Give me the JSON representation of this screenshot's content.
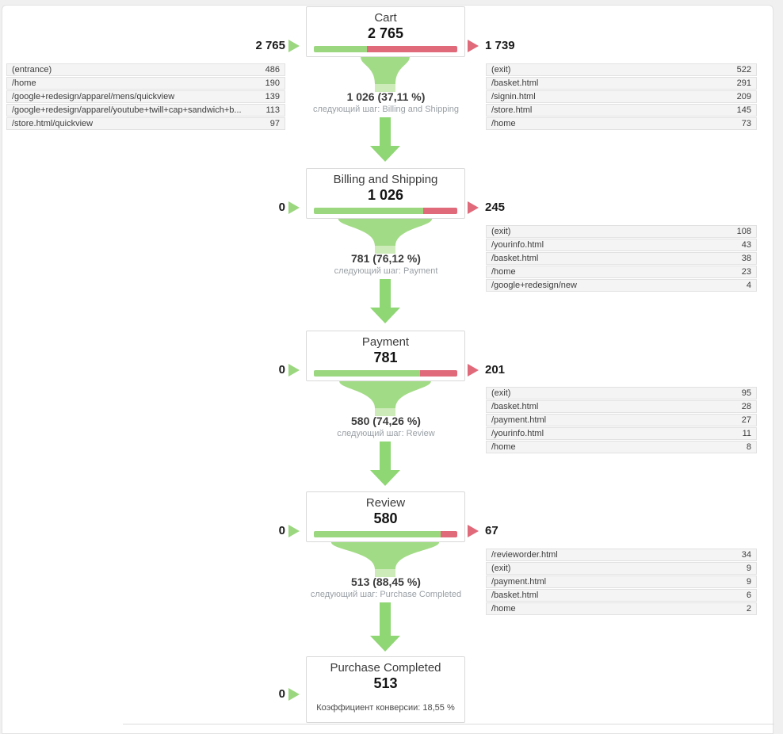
{
  "colors": {
    "green": "#9bd77f",
    "red": "#e0697a",
    "funnel": "#a2db86",
    "funnel_light": "#cdeab9",
    "stem": "#8fd674"
  },
  "steps": [
    {
      "title": "Cart",
      "value": "2 765",
      "in_count": "2 765",
      "out_count": "1 739",
      "bar_green_pct": 37.11,
      "entrance_table": [
        {
          "label": "(entrance)",
          "value": "486"
        },
        {
          "label": "/home",
          "value": "190"
        },
        {
          "label": "/google+redesign/apparel/mens/quickview",
          "value": "139"
        },
        {
          "label": "/google+redesign/apparel/youtube+twill+cap+sandwich+b...",
          "value": "113"
        },
        {
          "label": "/store.html/quickview",
          "value": "97"
        }
      ],
      "exit_table": [
        {
          "label": "(exit)",
          "value": "522"
        },
        {
          "label": "/basket.html",
          "value": "291"
        },
        {
          "label": "/signin.html",
          "value": "209"
        },
        {
          "label": "/store.html",
          "value": "145"
        },
        {
          "label": "/home",
          "value": "73"
        }
      ],
      "connector": {
        "pct": 37.11,
        "label": "1 026 (37,11 %)",
        "next": "следующий шаг: Billing and Shipping"
      }
    },
    {
      "title": "Billing and Shipping",
      "value": "1 026",
      "in_count": "0",
      "out_count": "245",
      "bar_green_pct": 76.12,
      "exit_table": [
        {
          "label": "(exit)",
          "value": "108"
        },
        {
          "label": "/yourinfo.html",
          "value": "43"
        },
        {
          "label": "/basket.html",
          "value": "38"
        },
        {
          "label": "/home",
          "value": "23"
        },
        {
          "label": "/google+redesign/new",
          "value": "4"
        }
      ],
      "connector": {
        "pct": 76.12,
        "label": "781 (76,12 %)",
        "next": "следующий шаг: Payment"
      }
    },
    {
      "title": "Payment",
      "value": "781",
      "in_count": "0",
      "out_count": "201",
      "bar_green_pct": 74.26,
      "exit_table": [
        {
          "label": "(exit)",
          "value": "95"
        },
        {
          "label": "/basket.html",
          "value": "28"
        },
        {
          "label": "/payment.html",
          "value": "27"
        },
        {
          "label": "/yourinfo.html",
          "value": "11"
        },
        {
          "label": "/home",
          "value": "8"
        }
      ],
      "connector": {
        "pct": 74.26,
        "label": "580 (74,26 %)",
        "next": "следующий шаг: Review"
      }
    },
    {
      "title": "Review",
      "value": "580",
      "in_count": "0",
      "out_count": "67",
      "bar_green_pct": 88.45,
      "exit_table": [
        {
          "label": "/revieworder.html",
          "value": "34"
        },
        {
          "label": "(exit)",
          "value": "9"
        },
        {
          "label": "/payment.html",
          "value": "9"
        },
        {
          "label": "/basket.html",
          "value": "6"
        },
        {
          "label": "/home",
          "value": "2"
        }
      ],
      "connector": {
        "pct": 88.45,
        "label": "513 (88,45 %)",
        "next": "следующий шаг: Purchase Completed"
      }
    },
    {
      "title": "Purchase Completed",
      "value": "513",
      "in_count": "0",
      "conversion": "Коэффициент конверсии: 18,55 %"
    }
  ],
  "chart_data": {
    "type": "funnel",
    "title": "Goal funnel visualization",
    "steps": [
      "Cart",
      "Billing and Shipping",
      "Payment",
      "Review",
      "Purchase Completed"
    ],
    "values": [
      2765,
      1026,
      781,
      580,
      513
    ],
    "entered_from_outside": [
      2765,
      0,
      0,
      0,
      0
    ],
    "exited": [
      1739,
      245,
      201,
      67,
      null
    ],
    "proceeded_count": [
      1026,
      781,
      580,
      513,
      null
    ],
    "proceeded_pct": [
      37.11,
      76.12,
      74.26,
      88.45,
      null
    ],
    "conversion_rate_pct": 18.55,
    "legend_position": "none",
    "grid": false
  }
}
